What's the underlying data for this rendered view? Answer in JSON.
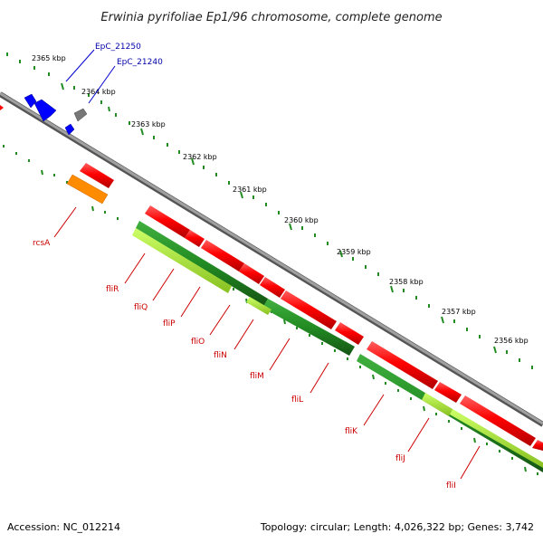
{
  "title": "Erwinia pyrifoliae Ep1/96 chromosome, complete genome",
  "footer": {
    "accession": "Accession: NC_012214",
    "stats": "Topology: circular; Length: 4,026,322 bp; Genes: 3,742"
  },
  "scale": {
    "ticks": [
      "2365 kbp",
      "2364 kbp",
      "2363 kbp",
      "2362 kbp",
      "2361 kbp",
      "2360 kbp",
      "2359 kbp",
      "2358 kbp",
      "2357 kbp",
      "2356 kbp"
    ]
  },
  "gene_labels": {
    "blue": [
      "EpC_21250",
      "EpC_21240"
    ],
    "red": [
      "rcsA",
      "fliR",
      "fliQ",
      "fliP",
      "fliO",
      "fliN",
      "fliM",
      "fliL",
      "fliK",
      "fliJ",
      "fliI"
    ]
  },
  "colors": {
    "backbone": "#808080",
    "cds": "#ff0000",
    "orange": "#ff8c00",
    "blue": "#0000ff",
    "gray_feature": "#777777",
    "dark_green": "#228b22",
    "light_green": "#9acd32",
    "tick_green": "#228b22",
    "label_red": "#cc0000",
    "label_blue": "#0000aa"
  }
}
